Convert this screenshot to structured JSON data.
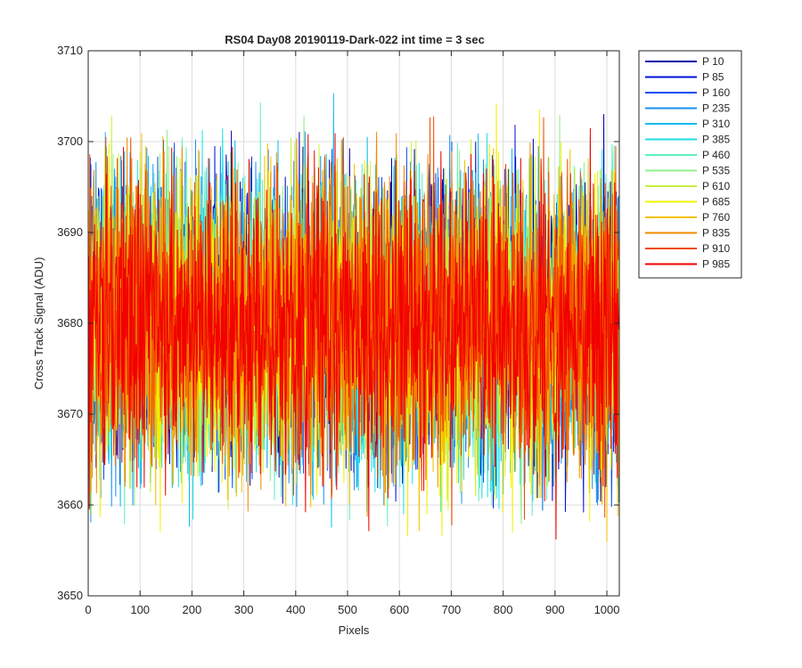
{
  "chart_data": {
    "type": "line",
    "title": "RS04 Day08 20190119-Dark-022 int time = 3 sec",
    "xlabel": "Pixels",
    "ylabel": "Cross Track Signal (ADU)",
    "xlim": [
      0,
      1024
    ],
    "ylim": [
      3650,
      3710
    ],
    "xticks": [
      0,
      100,
      200,
      300,
      400,
      500,
      600,
      700,
      800,
      900,
      1000
    ],
    "yticks": [
      3650,
      3660,
      3670,
      3680,
      3690,
      3700,
      3710
    ],
    "grid": true,
    "legend_placement": "outside-top-right",
    "noise_model": {
      "n_points": 1024,
      "mean": 3680,
      "std": 8,
      "min": 3652,
      "max": 3710
    },
    "series": [
      {
        "name": "P 10",
        "color": "#0000aa"
      },
      {
        "name": "P 85",
        "color": "#0010d9"
      },
      {
        "name": "P 160",
        "color": "#0a4ff0"
      },
      {
        "name": "P 235",
        "color": "#1a8ff0"
      },
      {
        "name": "P 310",
        "color": "#0cbbf0"
      },
      {
        "name": "P 385",
        "color": "#1ee0e6"
      },
      {
        "name": "P 460",
        "color": "#5cf0c2"
      },
      {
        "name": "P 535",
        "color": "#8ff08a"
      },
      {
        "name": "P 610",
        "color": "#c8f23a"
      },
      {
        "name": "P 685",
        "color": "#f2f200"
      },
      {
        "name": "P 760",
        "color": "#f2c200"
      },
      {
        "name": "P 835",
        "color": "#f28a00"
      },
      {
        "name": "P 910",
        "color": "#f24a00"
      },
      {
        "name": "P 985",
        "color": "#f20000"
      }
    ]
  }
}
